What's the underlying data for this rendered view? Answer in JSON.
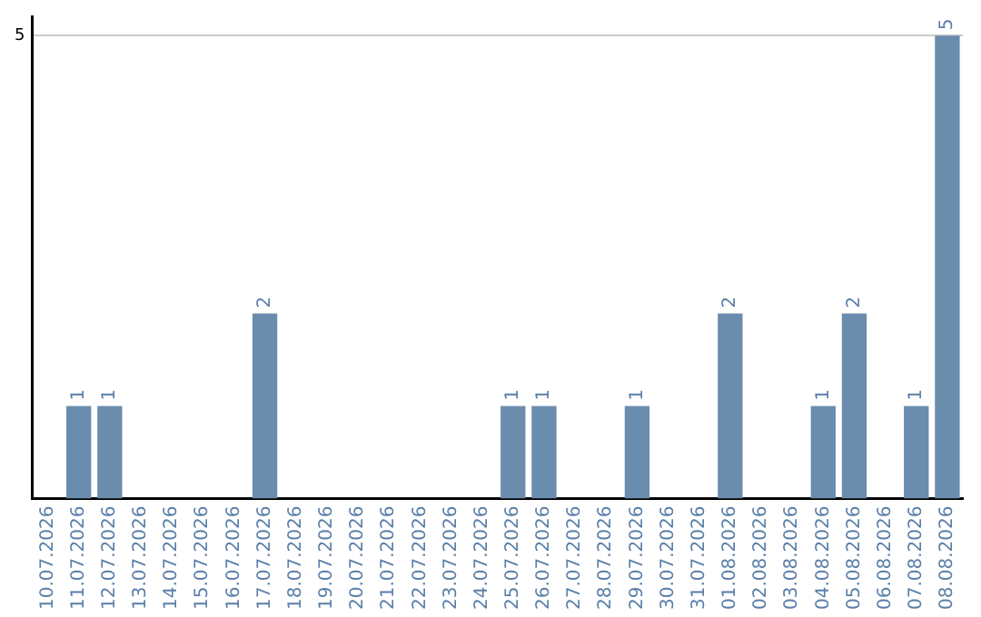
{
  "chart_data": {
    "type": "bar",
    "categories": [
      "10.07.2026",
      "11.07.2026",
      "12.07.2026",
      "13.07.2026",
      "14.07.2026",
      "15.07.2026",
      "16.07.2026",
      "17.07.2026",
      "18.07.2026",
      "19.07.2026",
      "20.07.2026",
      "21.07.2026",
      "22.07.2026",
      "23.07.2026",
      "24.07.2026",
      "25.07.2026",
      "26.07.2026",
      "27.07.2026",
      "28.07.2026",
      "29.07.2026",
      "30.07.2026",
      "31.07.2026",
      "01.08.2026",
      "02.08.2026",
      "03.08.2026",
      "04.08.2026",
      "05.08.2026",
      "06.08.2026",
      "07.08.2026",
      "08.08.2026"
    ],
    "values": [
      0,
      1,
      1,
      0,
      0,
      0,
      0,
      2,
      0,
      0,
      0,
      0,
      0,
      0,
      0,
      1,
      1,
      0,
      0,
      1,
      0,
      0,
      2,
      0,
      0,
      1,
      2,
      0,
      1,
      5
    ],
    "value_labels": [
      null,
      "1",
      "1",
      null,
      null,
      null,
      null,
      "2",
      null,
      null,
      null,
      null,
      null,
      null,
      null,
      "1",
      "1",
      null,
      null,
      "1",
      null,
      null,
      "2",
      null,
      null,
      "1",
      "2",
      null,
      "1",
      "5"
    ],
    "color": "#6a8cad",
    "ylim": [
      0,
      5.2
    ],
    "yticks": [
      5
    ],
    "grid": "y",
    "legend": false
  }
}
